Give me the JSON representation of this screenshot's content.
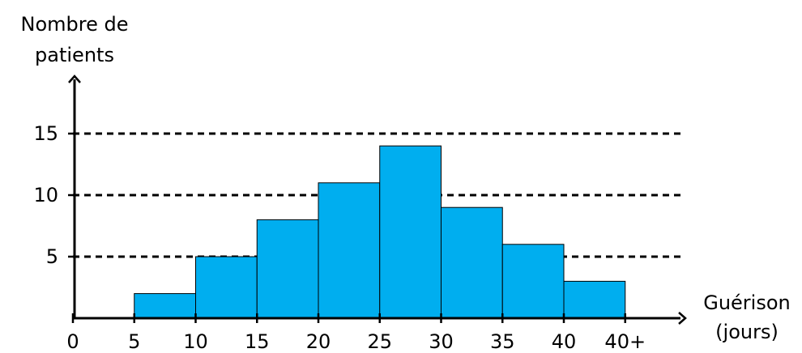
{
  "chart_data": {
    "type": "bar",
    "subtype": "histogram",
    "ylabel_lines": [
      "Nombre de",
      "patients"
    ],
    "xlabel_lines": [
      "Guérison",
      "(jours)"
    ],
    "x_tick_labels": [
      "0",
      "5",
      "10",
      "15",
      "20",
      "25",
      "30",
      "35",
      "40",
      "40+"
    ],
    "y_tick_labels": [
      "5",
      "10",
      "15"
    ],
    "bins": [
      {
        "from": 5,
        "to": 10,
        "value": 2
      },
      {
        "from": 10,
        "to": 15,
        "value": 5
      },
      {
        "from": 15,
        "to": 20,
        "value": 8
      },
      {
        "from": 20,
        "to": 25,
        "value": 11
      },
      {
        "from": 25,
        "to": 30,
        "value": 14
      },
      {
        "from": 30,
        "to": 35,
        "value": 9
      },
      {
        "from": 35,
        "to": 40,
        "value": 6
      },
      {
        "from": 40,
        "to": 45,
        "value": 3
      }
    ],
    "xlim": [
      0,
      50
    ],
    "ylim": [
      0,
      20
    ],
    "gridlines_y": [
      5,
      10,
      15
    ],
    "grid_style": "dashed",
    "bar_color": "#00aeef",
    "bar_edge_color": "#000000"
  }
}
